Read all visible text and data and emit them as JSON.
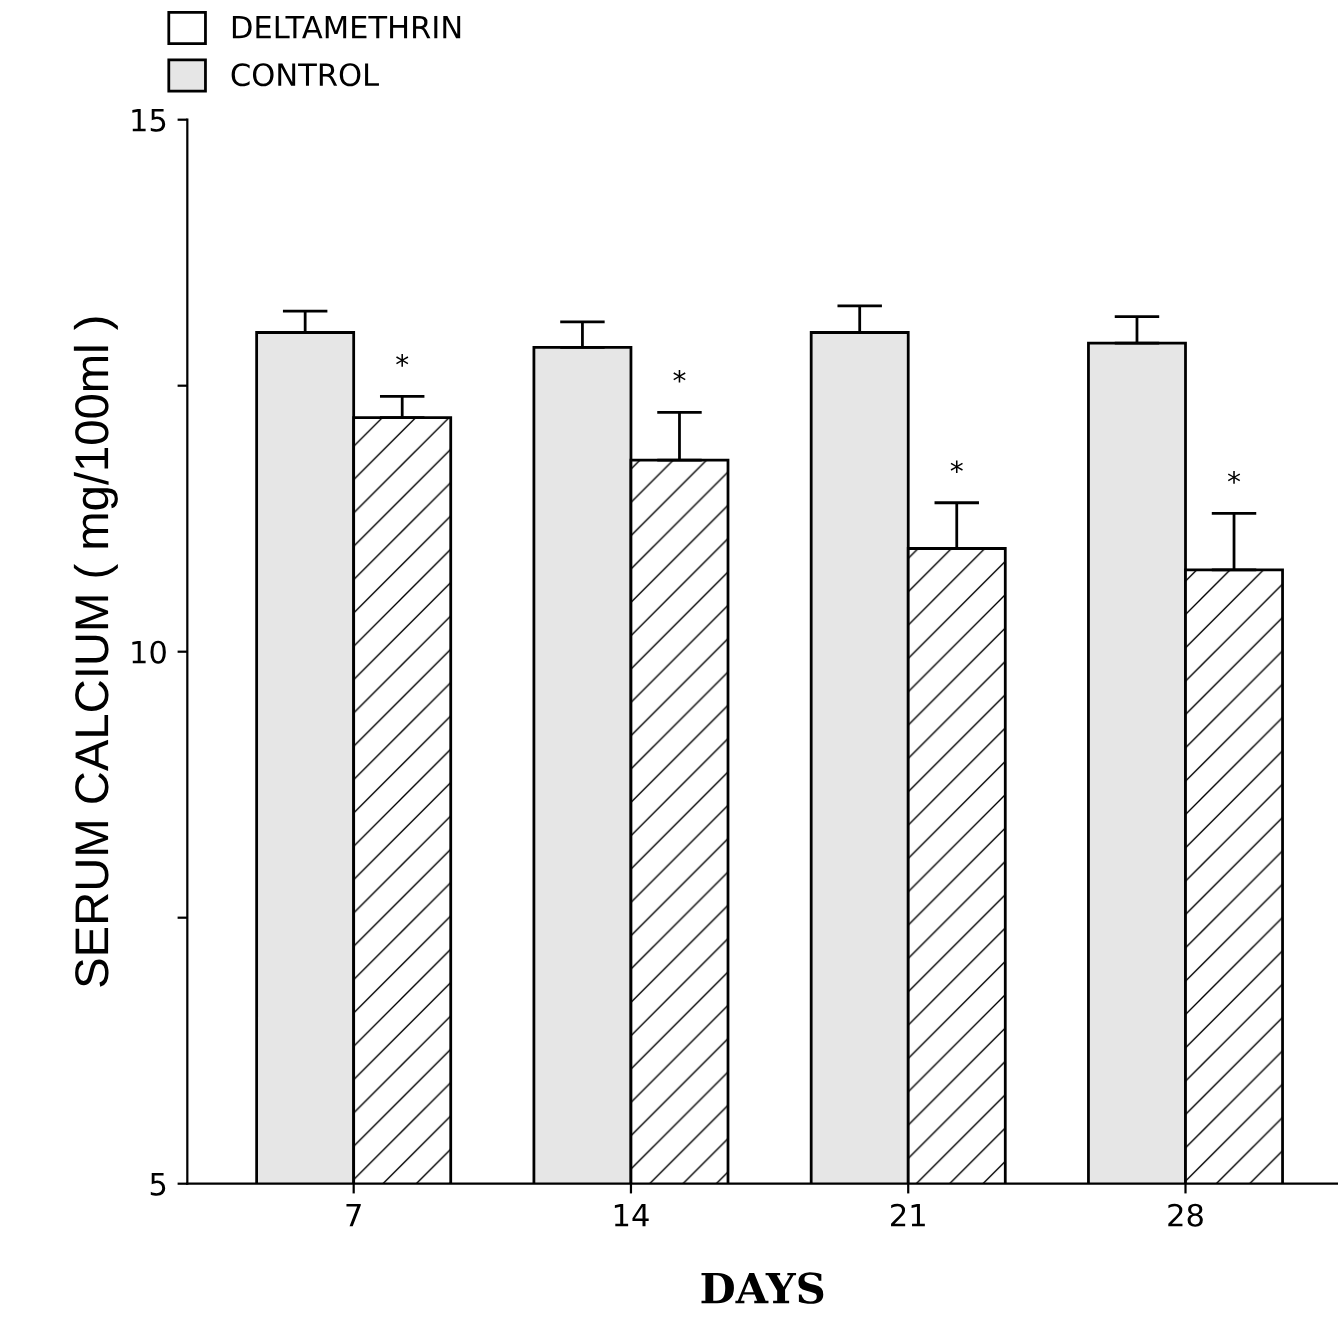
{
  "chart_data": {
    "type": "bar",
    "xlabel": "DAYS",
    "ylabel": "SERUM CALCIUM ( mg/100ml )",
    "categories": [
      "7",
      "14",
      "21",
      "28"
    ],
    "series": [
      {
        "name": "CONTROL",
        "color": "#e6e6e6",
        "values": [
          13.0,
          12.86,
          13.0,
          12.9
        ],
        "errors": [
          [
            13.0,
            13.2
          ],
          [
            12.86,
            13.1
          ],
          [
            13.0,
            13.25
          ],
          [
            12.9,
            13.15
          ]
        ]
      },
      {
        "name": "DELTAMETHRIN",
        "color": "#ffffff",
        "values": [
          12.2,
          11.8,
          10.97,
          10.77
        ],
        "errors": [
          [
            12.2,
            12.4
          ],
          [
            11.8,
            12.25
          ],
          [
            10.97,
            11.4
          ],
          [
            10.77,
            11.3
          ]
        ]
      }
    ],
    "annotations": [
      {
        "text": "*",
        "x": "7",
        "y": 12.55
      },
      {
        "text": "*",
        "x": "14",
        "y": 12.4
      },
      {
        "text": "*",
        "x": "21",
        "y": 11.55
      },
      {
        "text": "*",
        "x": "28",
        "y": 11.45
      }
    ],
    "ylim": [
      5,
      15
    ],
    "yticks": [
      5,
      {
        "value": 7.5,
        "label": null
      },
      10,
      {
        "value": 12.5,
        "label": null
      },
      15
    ],
    "grid": false,
    "legend": "top left"
  }
}
